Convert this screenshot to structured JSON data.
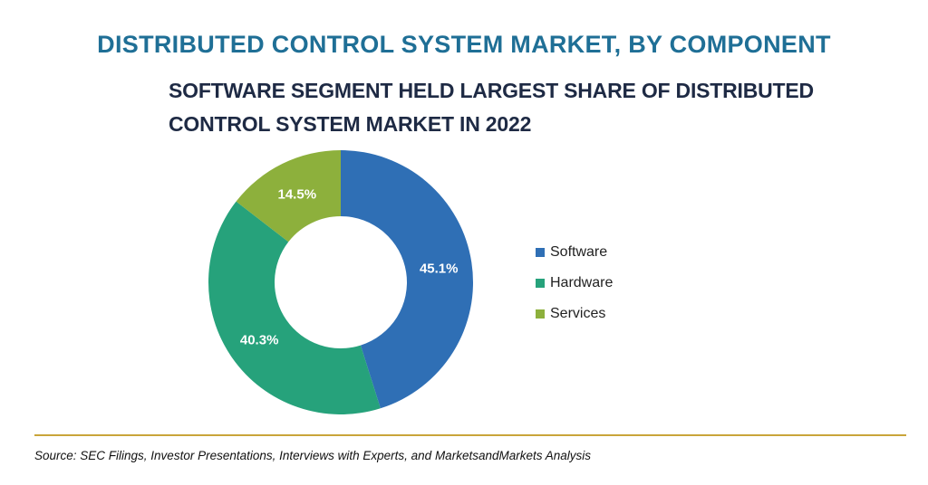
{
  "header": {
    "title": "DISTRIBUTED CONTROL SYSTEM MARKET, BY COMPONENT",
    "subtitle": "SOFTWARE SEGMENT HELD LARGEST SHARE OF DISTRIBUTED CONTROL SYSTEM MARKET IN 2022"
  },
  "chart_data": {
    "type": "pie",
    "variant": "donut",
    "title": "DISTRIBUTED CONTROL SYSTEM MARKET, BY COMPONENT",
    "subtitle": "SOFTWARE SEGMENT HELD LARGEST SHARE OF DISTRIBUTED CONTROL SYSTEM MARKET IN 2022",
    "categories": [
      "Software",
      "Hardware",
      "Services"
    ],
    "values": [
      45.1,
      40.3,
      14.5
    ],
    "data_labels": [
      "45.1%",
      "40.3%",
      "14.5%"
    ],
    "colors": [
      "#2f6fb5",
      "#26a27b",
      "#8db03c"
    ],
    "legend_position": "right"
  },
  "footer": {
    "source": "Source: SEC Filings, Investor Presentations, Interviews with Experts, and MarketsandMarkets Analysis",
    "rule_color": "#c9a53a"
  }
}
